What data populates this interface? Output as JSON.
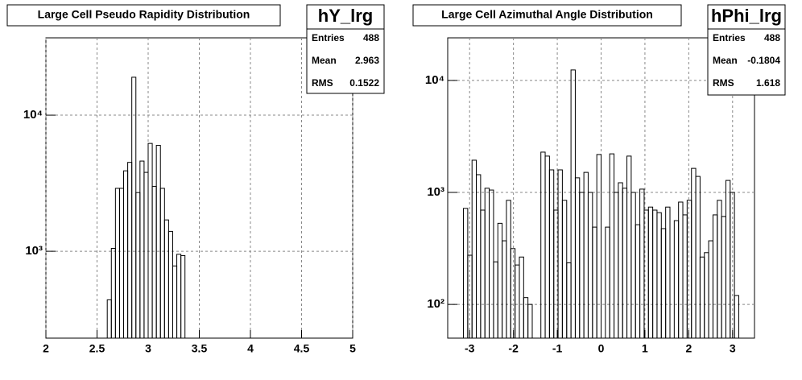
{
  "chart_data": [
    {
      "type": "histogram",
      "title": "Large Cell Pseudo Rapidity Distribution",
      "stats_name": "hY_lrg",
      "stats": [
        {
          "label": "Entries",
          "value": 488
        },
        {
          "label": "Mean",
          "value": 2.963
        },
        {
          "label": "RMS",
          "value": 0.1522
        }
      ],
      "bins": [
        2.6,
        2.64,
        2.68,
        2.72,
        2.76,
        2.8,
        2.84,
        2.88,
        2.92,
        2.96,
        3.0,
        3.04,
        3.08,
        3.12,
        3.16,
        3.2,
        3.24,
        3.28,
        3.32,
        3.36
      ],
      "values": [
        440,
        1050,
        2900,
        2900,
        3900,
        4500,
        19000,
        2700,
        4600,
        3800,
        6200,
        3000,
        6000,
        2900,
        1700,
        1400,
        780,
        950,
        930
      ],
      "color": "#000000",
      "xlim": [
        2,
        5
      ],
      "xticks": [
        2,
        2.5,
        3,
        3.5,
        4,
        4.5,
        5
      ],
      "ylim": [
        230,
        37000
      ],
      "log_y": true,
      "yticks": [
        {
          "value": 1000,
          "label": "10³"
        },
        {
          "value": 10000,
          "label": "10⁴"
        }
      ],
      "grid": true
    },
    {
      "type": "histogram",
      "title": "Large Cell Azimuthal Angle Distribution",
      "stats_name": "hPhi_lrg",
      "stats": [
        {
          "label": "Entries",
          "value": 488
        },
        {
          "label": "Mean",
          "value": -0.1804
        },
        {
          "label": "RMS",
          "value": 1.618
        }
      ],
      "bins": [
        -3.142,
        -3.043,
        -2.945,
        -2.847,
        -2.749,
        -2.651,
        -2.553,
        -2.454,
        -2.356,
        -2.258,
        -2.16,
        -2.062,
        -1.963,
        -1.865,
        -1.767,
        -1.669,
        -1.571,
        -1.473,
        -1.374,
        -1.276,
        -1.178,
        -1.08,
        -0.982,
        -0.884,
        -0.785,
        -0.687,
        -0.589,
        -0.491,
        -0.393,
        -0.295,
        -0.196,
        -0.098,
        0,
        0.098,
        0.196,
        0.295,
        0.393,
        0.491,
        0.589,
        0.687,
        0.785,
        0.884,
        0.982,
        1.08,
        1.178,
        1.276,
        1.374,
        1.473,
        1.571,
        1.669,
        1.767,
        1.865,
        1.963,
        2.062,
        2.16,
        2.258,
        2.356,
        2.454,
        2.553,
        2.651,
        2.749,
        2.847,
        2.945,
        3.043,
        3.142
      ],
      "values": [
        720,
        275,
        1940,
        1440,
        695,
        1090,
        1050,
        240,
        530,
        370,
        850,
        315,
        225,
        265,
        115,
        100,
        0,
        0,
        2290,
        2110,
        1590,
        695,
        1590,
        850,
        235,
        12400,
        1350,
        1000,
        1510,
        1000,
        490,
        2180,
        0,
        490,
        2210,
        1000,
        1220,
        1090,
        2110,
        1000,
        515,
        1070,
        695,
        740,
        695,
        660,
        475,
        740,
        0,
        560,
        820,
        630,
        850,
        1640,
        1390,
        265,
        290,
        370,
        630,
        850,
        610,
        1280,
        1000,
        120
      ],
      "color": "#000000",
      "xlim": [
        -3.5,
        3.5
      ],
      "xticks": [
        -3,
        -2,
        -1,
        0,
        1,
        2,
        3
      ],
      "ylim": [
        50,
        24000
      ],
      "log_y": true,
      "yticks": [
        {
          "value": 100,
          "label": "10²"
        },
        {
          "value": 1000,
          "label": "10³"
        },
        {
          "value": 10000,
          "label": "10⁴"
        }
      ],
      "grid": true
    }
  ]
}
